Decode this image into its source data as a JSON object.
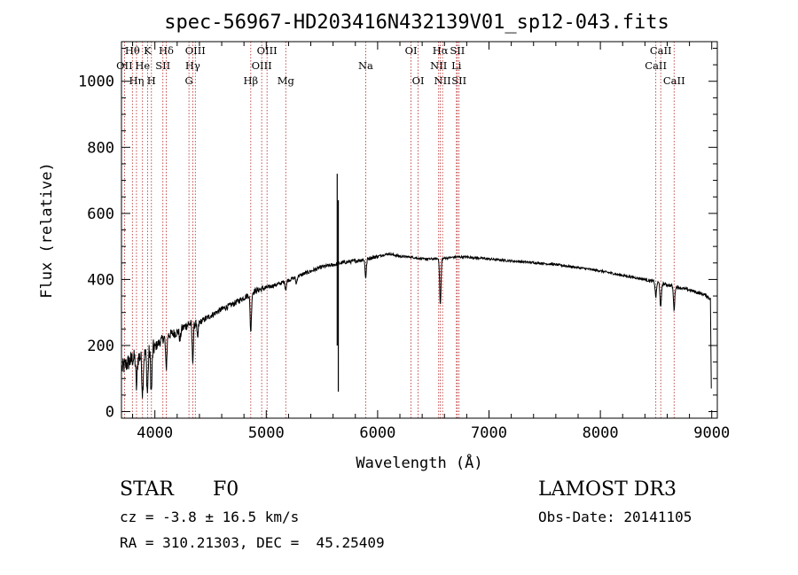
{
  "chart_data": {
    "type": "line",
    "title": "spec-56967-HD203416N432139V01_sp12-043.fits",
    "xlabel": "Wavelength (Å)",
    "ylabel": "Flux (relative)",
    "xlim": [
      3700,
      9050
    ],
    "ylim": [
      -20,
      1120
    ],
    "xticks": [
      4000,
      5000,
      6000,
      7000,
      8000,
      9000
    ],
    "yticks": [
      0,
      200,
      400,
      600,
      800,
      1000
    ],
    "continuum": [
      [
        3700,
        130
      ],
      [
        3800,
        160
      ],
      [
        3900,
        170
      ],
      [
        4000,
        195
      ],
      [
        4100,
        230
      ],
      [
        4200,
        240
      ],
      [
        4300,
        265
      ],
      [
        4400,
        270
      ],
      [
        4500,
        290
      ],
      [
        4600,
        310
      ],
      [
        4700,
        325
      ],
      [
        4800,
        345
      ],
      [
        4900,
        365
      ],
      [
        5000,
        375
      ],
      [
        5100,
        385
      ],
      [
        5200,
        398
      ],
      [
        5300,
        412
      ],
      [
        5400,
        425
      ],
      [
        5500,
        438
      ],
      [
        5600,
        444
      ],
      [
        5700,
        452
      ],
      [
        5800,
        456
      ],
      [
        5900,
        462
      ],
      [
        6000,
        470
      ],
      [
        6100,
        478
      ],
      [
        6200,
        470
      ],
      [
        6300,
        468
      ],
      [
        6400,
        462
      ],
      [
        6500,
        462
      ],
      [
        6600,
        464
      ],
      [
        6700,
        468
      ],
      [
        6800,
        468
      ],
      [
        6900,
        465
      ],
      [
        7000,
        462
      ],
      [
        7200,
        456
      ],
      [
        7400,
        451
      ],
      [
        7600,
        445
      ],
      [
        7800,
        436
      ],
      [
        8000,
        426
      ],
      [
        8200,
        412
      ],
      [
        8400,
        400
      ],
      [
        8600,
        384
      ],
      [
        8800,
        368
      ],
      [
        8950,
        352
      ],
      [
        8990,
        340
      ]
    ],
    "absorption": [
      [
        3835,
        90
      ],
      [
        3889,
        110
      ],
      [
        3933,
        120
      ],
      [
        3968,
        130
      ],
      [
        4102,
        100
      ],
      [
        4226,
        30
      ],
      [
        4340,
        110
      ],
      [
        4383,
        50
      ],
      [
        4861,
        115
      ],
      [
        5175,
        25
      ],
      [
        5270,
        20
      ],
      [
        5893,
        55
      ],
      [
        6563,
        140
      ],
      [
        8498,
        45
      ],
      [
        8542,
        75
      ],
      [
        8662,
        70
      ]
    ],
    "artifacts": [
      {
        "x": 5637,
        "ymin": 200,
        "ymax": 720
      },
      {
        "x": 5647,
        "ymin": 60,
        "ymax": 640
      }
    ],
    "end_drop": {
      "x": 8996,
      "y": 70
    },
    "lines": [
      {
        "name": "Hθ",
        "wave": 3798,
        "row": 1
      },
      {
        "name": "OII",
        "wave": 3727,
        "row": 2
      },
      {
        "name": "Hη",
        "wave": 3835,
        "row": 3
      },
      {
        "name": "He",
        "wave": 3889,
        "row": 2
      },
      {
        "name": "K",
        "wave": 3934,
        "row": 1
      },
      {
        "name": "H",
        "wave": 3969,
        "row": 3
      },
      {
        "name": "Hδ",
        "wave": 4102,
        "row": 1
      },
      {
        "name": "SII",
        "wave": 4072,
        "row": 2
      },
      {
        "name": "OIII",
        "wave": 4363,
        "row": 1
      },
      {
        "name": "Hγ",
        "wave": 4340,
        "row": 2
      },
      {
        "name": "G",
        "wave": 4306,
        "row": 3
      },
      {
        "name": "Hβ",
        "wave": 4861,
        "row": 3
      },
      {
        "name": "OIII",
        "wave": 5007,
        "row": 1
      },
      {
        "name": "OIII",
        "wave": 4959,
        "row": 2
      },
      {
        "name": "Mg",
        "wave": 5175,
        "row": 3
      },
      {
        "name": "Na",
        "wave": 5893,
        "row": 2
      },
      {
        "name": "OI",
        "wave": 6300,
        "row": 1
      },
      {
        "name": "OI",
        "wave": 6364,
        "row": 3
      },
      {
        "name": "Hα",
        "wave": 6563,
        "row": 1
      },
      {
        "name": "NII",
        "wave": 6548,
        "row": 2
      },
      {
        "name": "NII",
        "wave": 6583,
        "row": 3
      },
      {
        "name": "SII",
        "wave": 6716,
        "row": 1
      },
      {
        "name": "Li",
        "wave": 6708,
        "row": 2
      },
      {
        "name": "SII",
        "wave": 6731,
        "row": 3
      },
      {
        "name": "CaII",
        "wave": 8542,
        "row": 1
      },
      {
        "name": "CaII",
        "wave": 8498,
        "row": 2
      },
      {
        "name": "CaII",
        "wave": 8662,
        "row": 3
      }
    ]
  },
  "info": {
    "object_class": "STAR",
    "subclass": "F0",
    "survey": "LAMOST DR3",
    "cz": "cz = -3.8 ± 16.5 km/s",
    "obs_date": "Obs-Date: 20141105",
    "coords": "RA = 310.21303, DEC =  45.25409"
  },
  "colors": {
    "spectrum": "#000000",
    "line_marker": "#b22222",
    "axes": "#000000"
  }
}
